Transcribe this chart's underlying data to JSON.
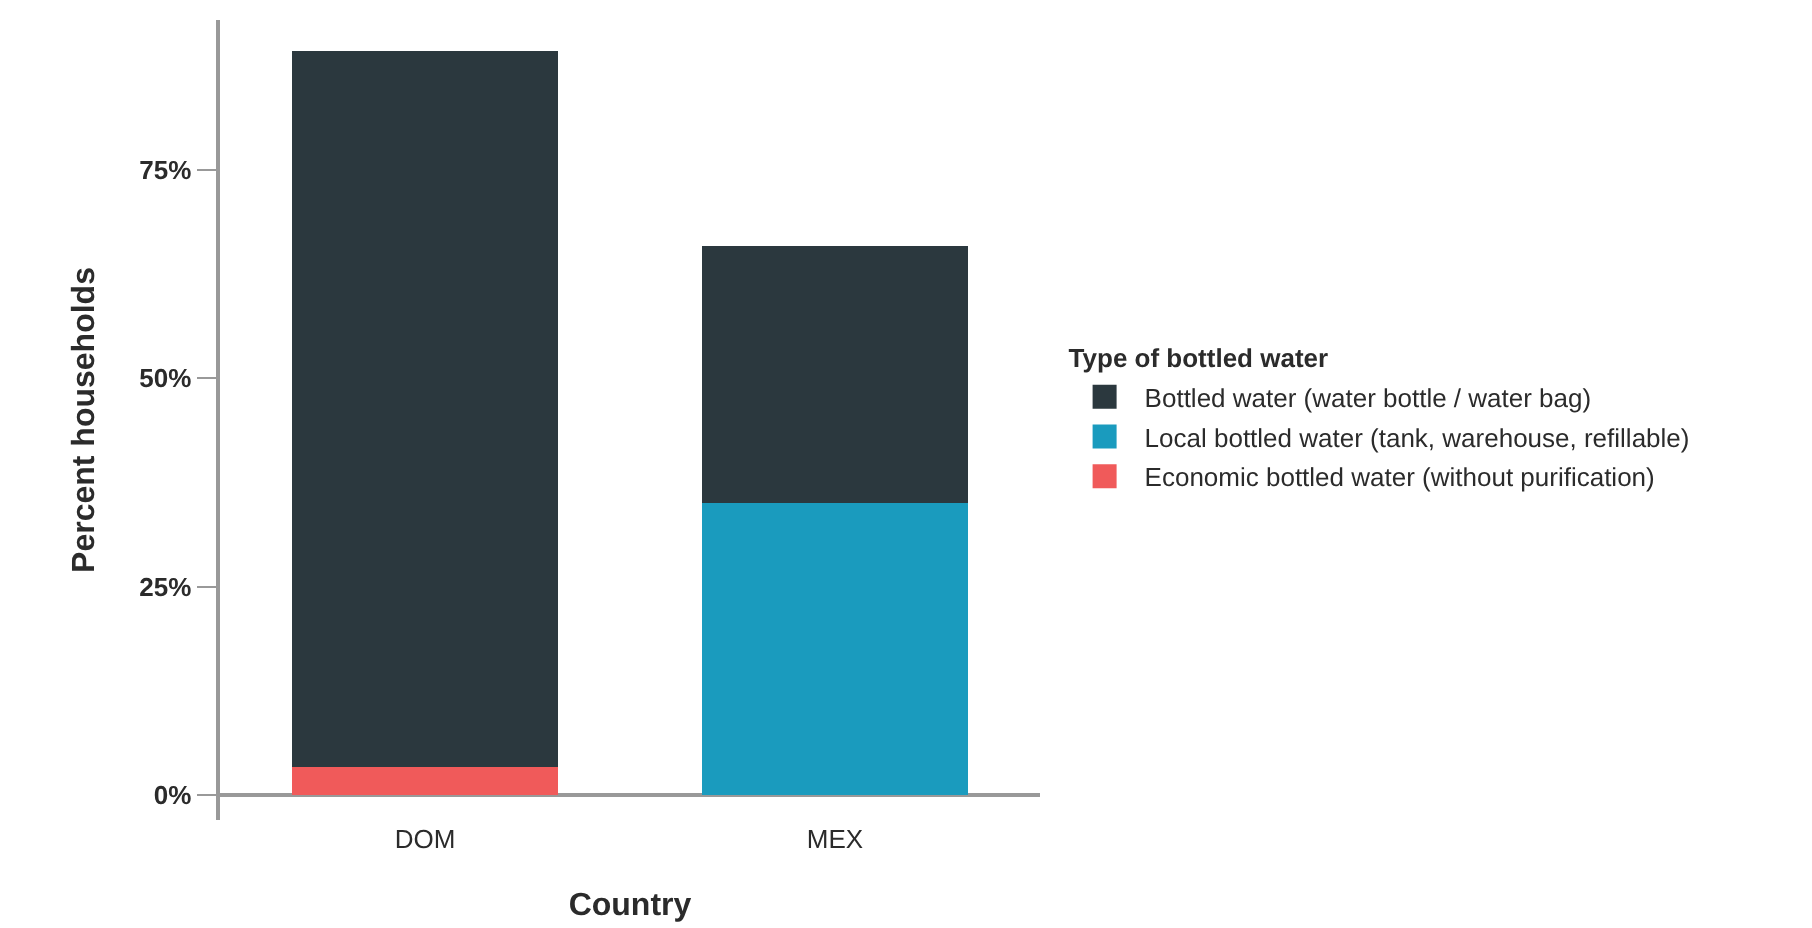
{
  "chart_data": {
    "type": "bar",
    "stacked": true,
    "xlabel": "Country",
    "ylabel": "Percent households",
    "legend_title": "Type of bottled water",
    "categories": [
      "DOM",
      "MEX"
    ],
    "series": [
      {
        "name": "Economic bottled water (without purification)",
        "color": "#f05a5a",
        "values": [
          3.4,
          0
        ]
      },
      {
        "name": "Local bottled water (tank, warehouse, refillable)",
        "color": "#1a9bbe",
        "values": [
          0,
          35.1
        ]
      },
      {
        "name": "Bottled water (water bottle / water bag)",
        "color": "#2b383e",
        "values": [
          85.9,
          30.8
        ]
      }
    ],
    "ylim": [
      -3,
      93
    ],
    "yticks": [
      {
        "value": 0,
        "label": "0%"
      },
      {
        "value": 25,
        "label": "25%"
      },
      {
        "value": 50,
        "label": "50%"
      },
      {
        "value": 75,
        "label": "75%"
      }
    ],
    "grid": false,
    "legend": "right"
  }
}
